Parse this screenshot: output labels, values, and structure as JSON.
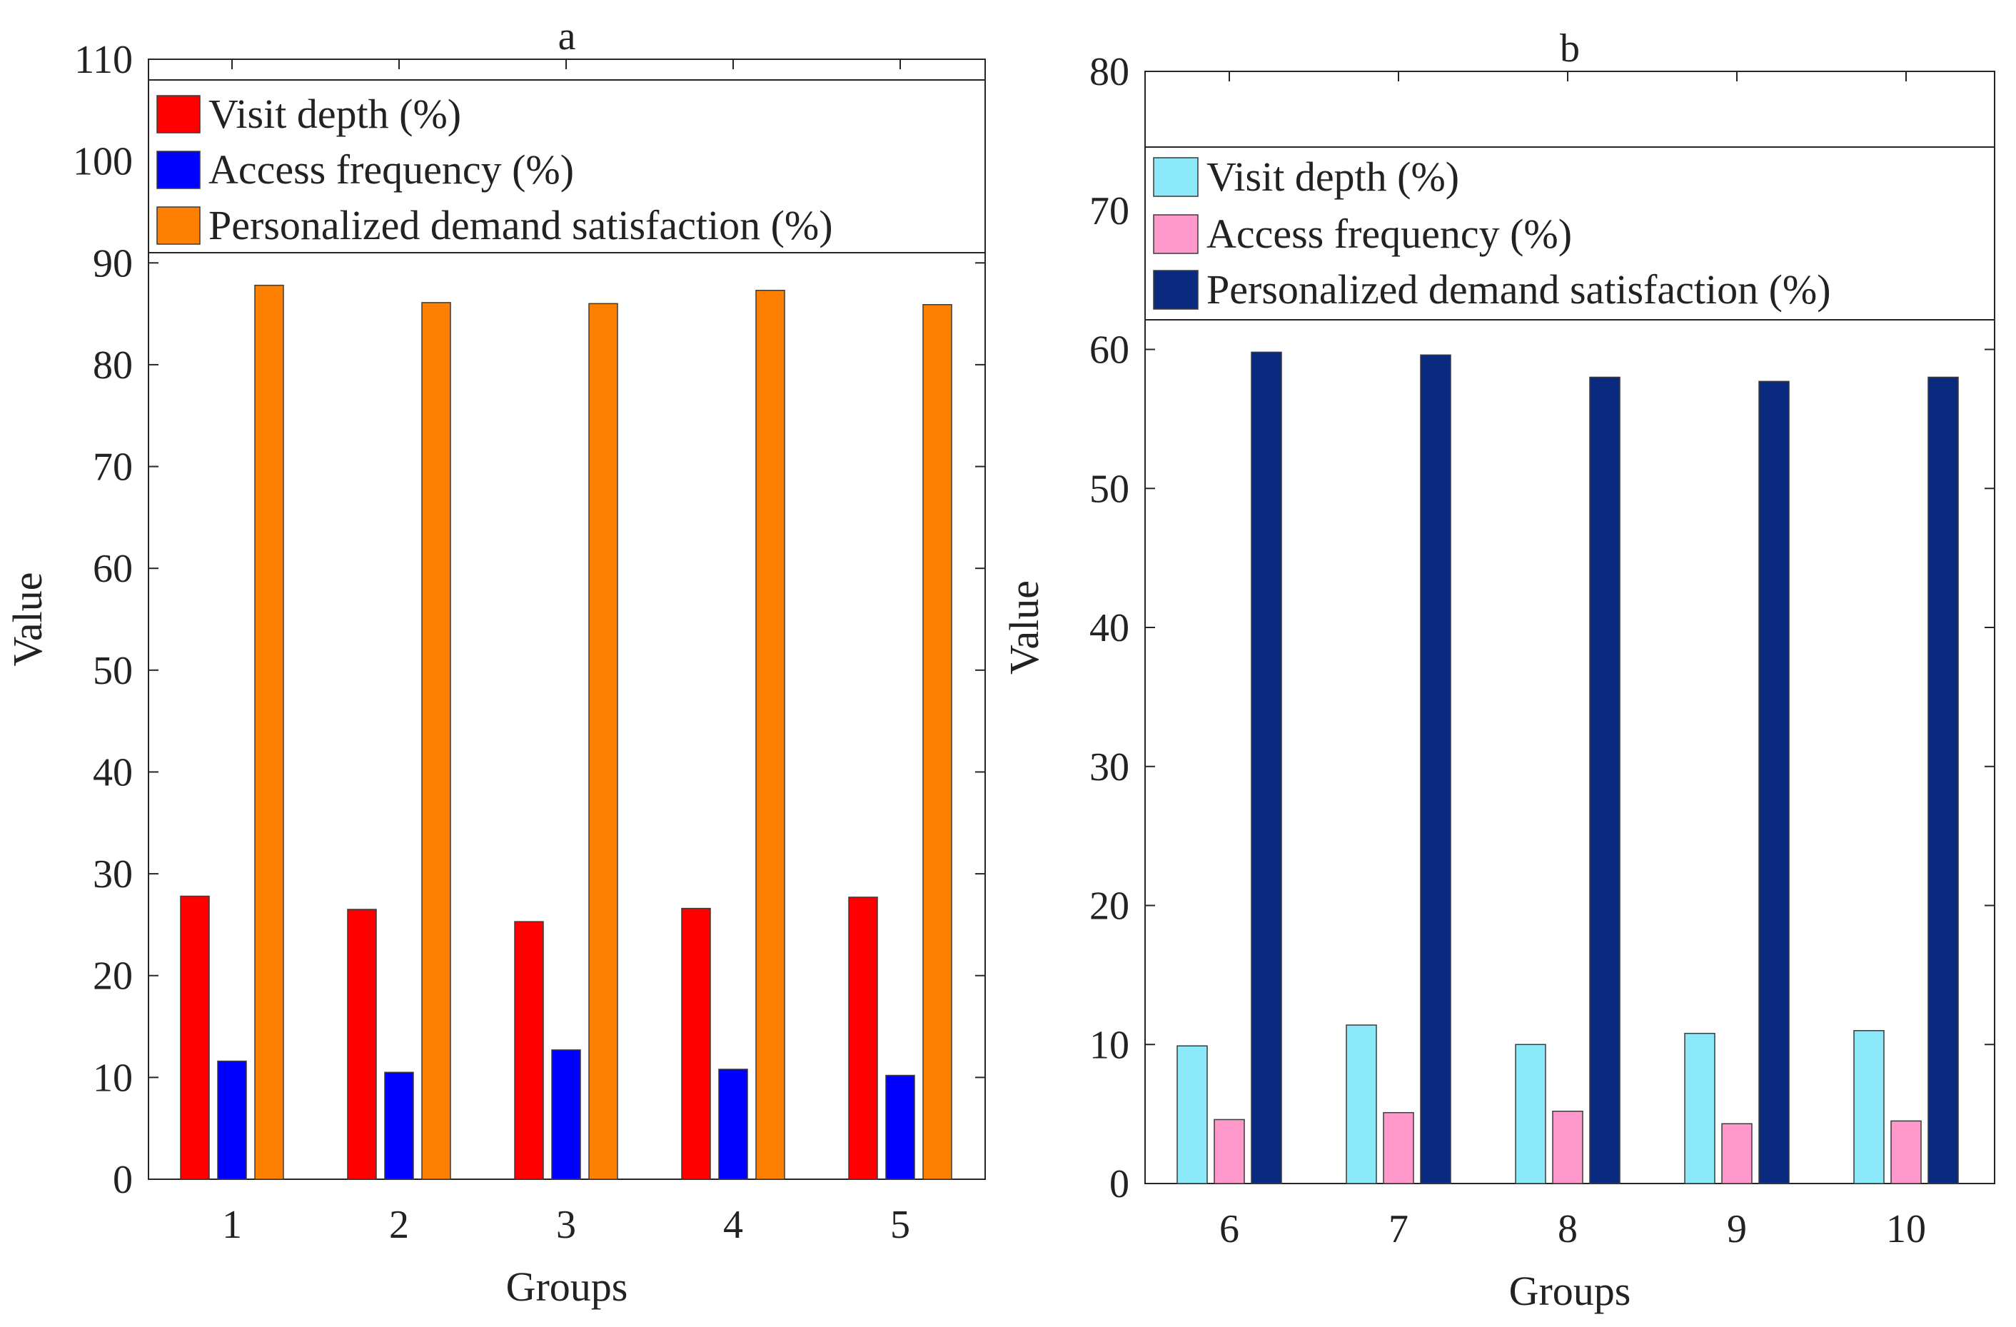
{
  "chart_data": [
    {
      "type": "bar",
      "title": "a",
      "xlabel": "Groups",
      "ylabel": "Value",
      "ylim": [
        0,
        110
      ],
      "yticks": [
        0,
        10,
        20,
        30,
        40,
        50,
        60,
        70,
        80,
        90,
        100,
        110
      ],
      "categories": [
        "1",
        "2",
        "3",
        "4",
        "5"
      ],
      "grid": false,
      "legend_position": "top",
      "series": [
        {
          "name": "Visit depth (%)",
          "color": "#ff0000",
          "values": [
            27.8,
            26.5,
            25.3,
            26.6,
            27.7
          ]
        },
        {
          "name": "Access frequency (%)",
          "color": "#0000ff",
          "values": [
            11.6,
            10.5,
            12.7,
            10.8,
            10.2
          ]
        },
        {
          "name": "Personalized demand satisfaction (%)",
          "color": "#ff8000",
          "values": [
            87.8,
            86.1,
            86.0,
            87.3,
            85.9
          ]
        }
      ]
    },
    {
      "type": "bar",
      "title": "b",
      "xlabel": "Groups",
      "ylabel": "Value",
      "ylim": [
        0,
        80
      ],
      "yticks": [
        0,
        10,
        20,
        30,
        40,
        50,
        60,
        70,
        80
      ],
      "categories": [
        "6",
        "7",
        "8",
        "9",
        "10"
      ],
      "grid": false,
      "legend_position": "top",
      "series": [
        {
          "name": "Visit depth (%)",
          "color": "#8ae8f8",
          "values": [
            9.9,
            11.4,
            10.0,
            10.8,
            11.0
          ]
        },
        {
          "name": "Access frequency (%)",
          "color": "#ff99cc",
          "values": [
            4.6,
            5.1,
            5.2,
            4.3,
            4.5
          ]
        },
        {
          "name": "Personalized demand satisfaction (%)",
          "color": "#0a2a80",
          "values": [
            59.8,
            59.6,
            58.0,
            57.7,
            58.0
          ]
        }
      ]
    }
  ]
}
